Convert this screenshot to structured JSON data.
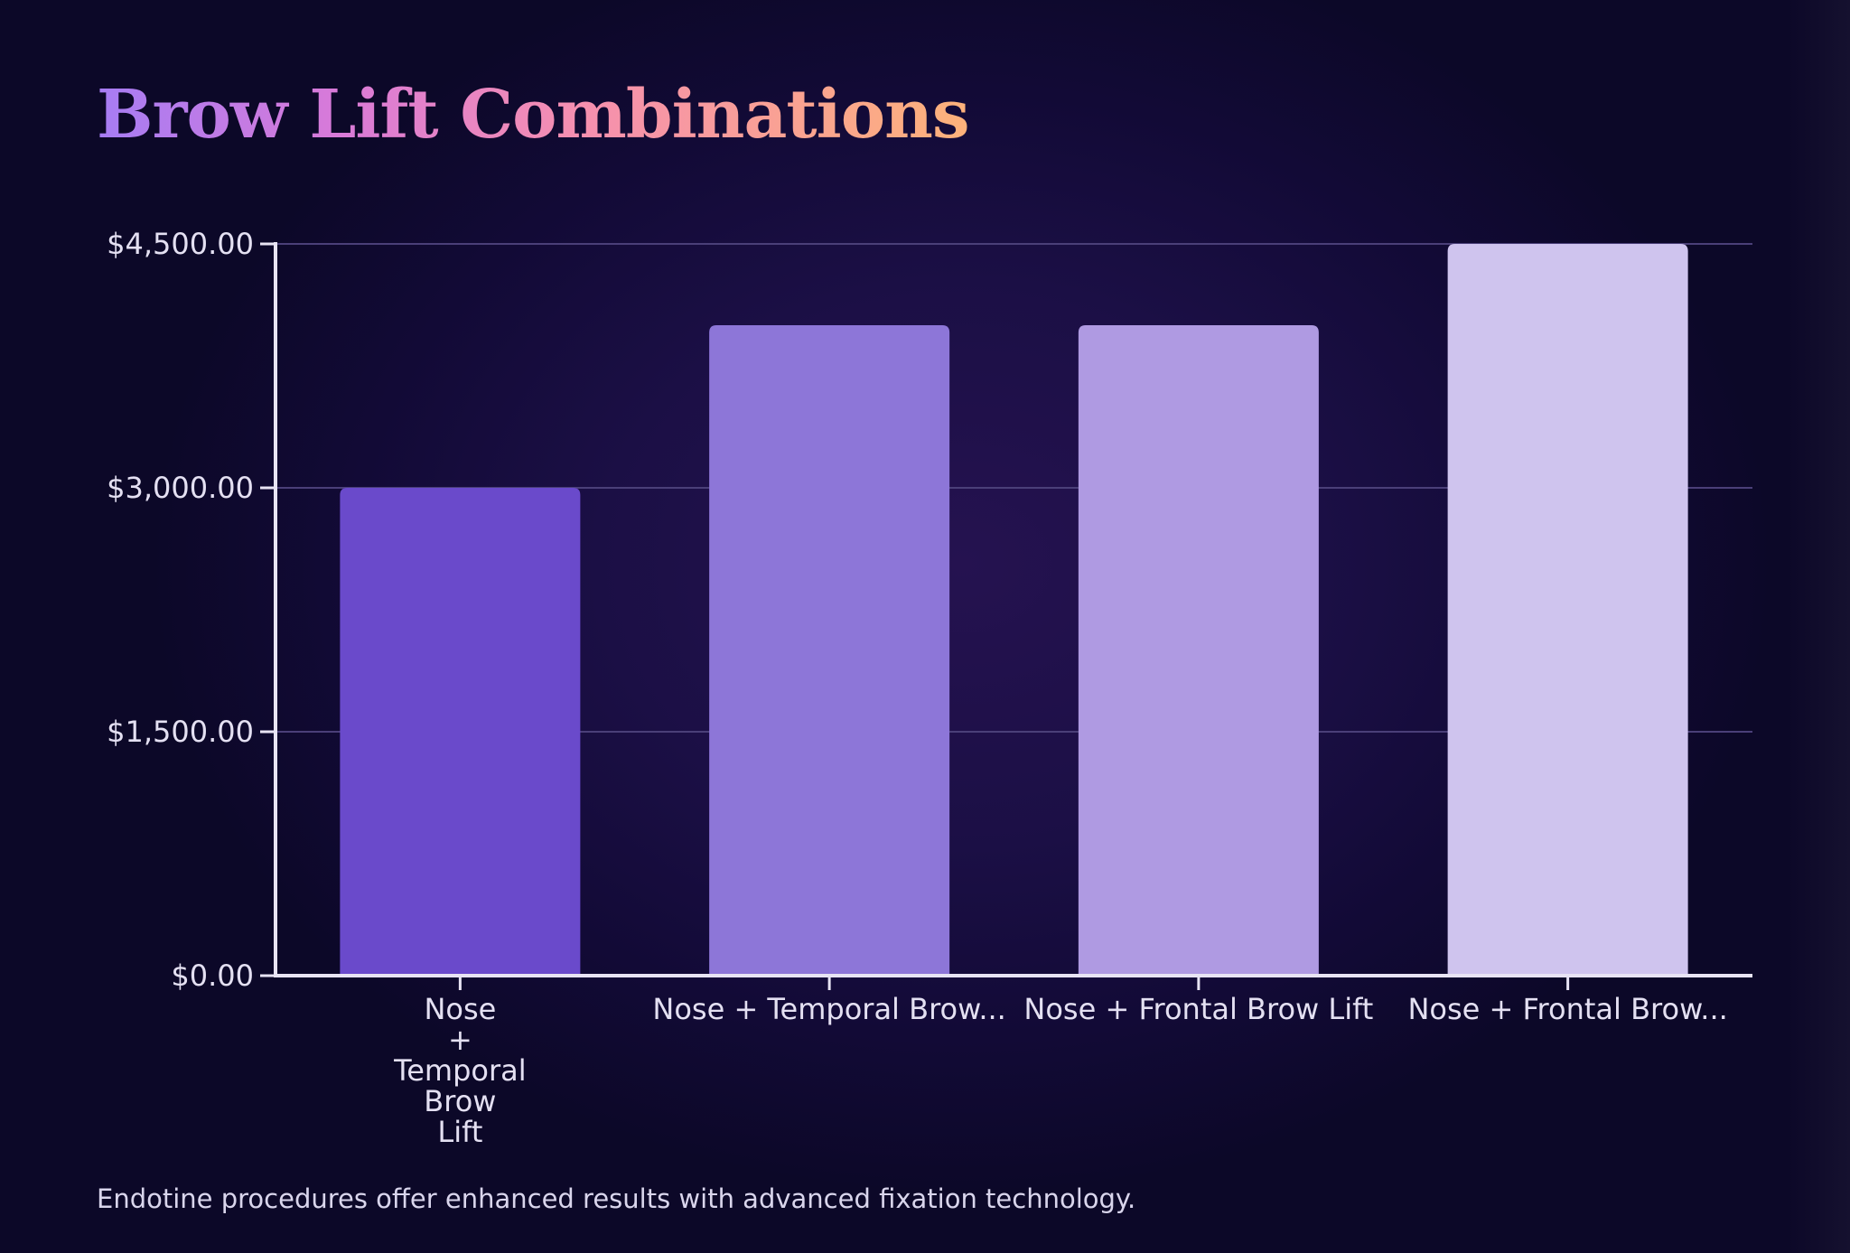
{
  "chart_data": {
    "type": "bar",
    "title": "Brow Lift Combinations",
    "categories": [
      "Nose + Temporal Brow Lift",
      "Nose + Temporal Brow...",
      "Nose + Frontal Brow Lift",
      "Nose + Frontal Brow..."
    ],
    "category_label_lines": [
      [
        "Nose",
        "+",
        "Temporal",
        "Brow",
        "Lift"
      ],
      [
        "Nose + Temporal Brow..."
      ],
      [
        "Nose + Frontal Brow Lift"
      ],
      [
        "Nose + Frontal Brow..."
      ]
    ],
    "values": [
      3000,
      4000,
      4000,
      4500
    ],
    "bar_colors": [
      "#6a4acb",
      "#8d76d8",
      "#af9ae2",
      "#cfc4ee"
    ],
    "ylim": [
      0,
      4500
    ],
    "yticks": [
      0,
      1500,
      3000,
      4500
    ],
    "ytick_labels": [
      "$0.00",
      "$1,500.00",
      "$3,000.00",
      "$4,500.00"
    ],
    "xlabel": "",
    "ylabel": "",
    "grid": true,
    "legend": "none"
  },
  "footnote": "Endotine procedures offer enhanced results with advanced fixation technology.",
  "colors": {
    "axis": "#e8e4f4",
    "grid": "#4a3f78",
    "tick_text": "#e4e0f2"
  }
}
